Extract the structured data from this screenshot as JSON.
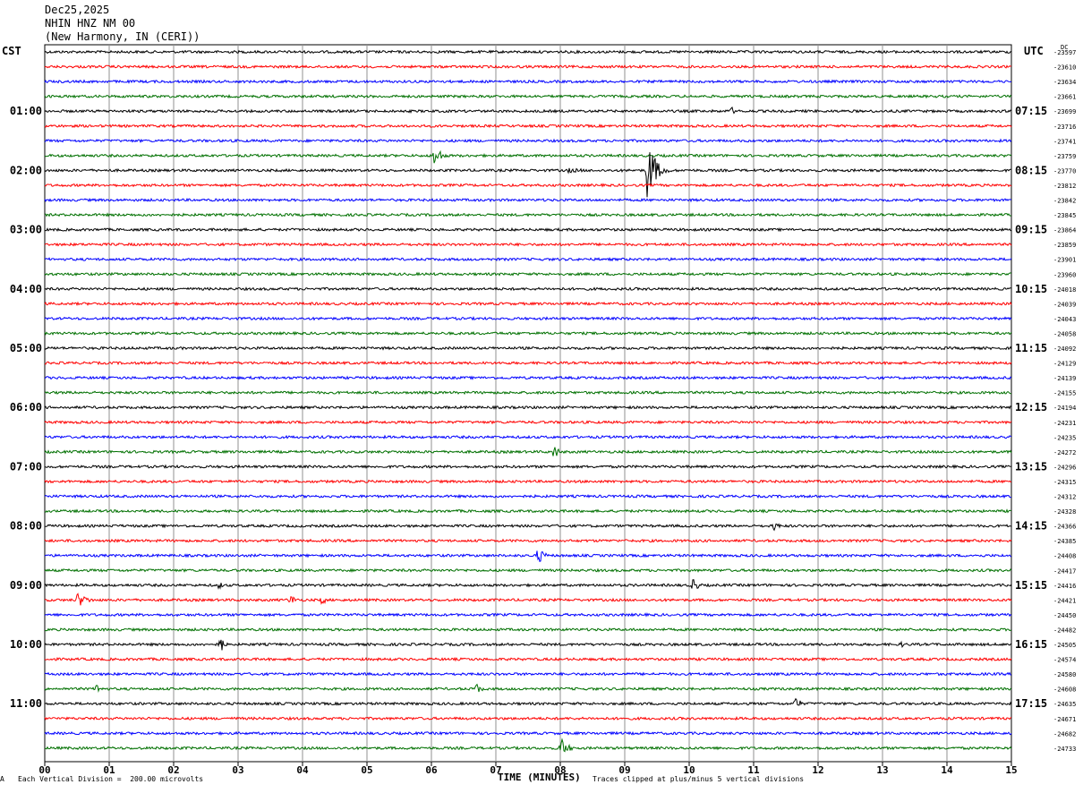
{
  "header": {
    "date": "Dec25,2025",
    "station": "NHIN HNZ NM 00",
    "location": "(New Harmony, IN (CERI))"
  },
  "left_zone_label": "CST",
  "right_zone_label": "UTC",
  "right_extra_label": "DC",
  "footer": {
    "scale_note": "Each Vertical Division =  200.00 microvolts",
    "clip_note": "Traces clipped at plus/minus 5 vertical divisions",
    "corner_mark": "A"
  },
  "chart_data": {
    "type": "line",
    "title": "",
    "xlabel": "TIME (MINUTES)",
    "xlim": [
      0,
      15
    ],
    "x_ticks": [
      "00",
      "01",
      "02",
      "03",
      "04",
      "05",
      "06",
      "07",
      "08",
      "09",
      "10",
      "11",
      "12",
      "13",
      "14",
      "15"
    ],
    "trace_interval_minutes": 15,
    "trace_colors": [
      "#000000",
      "#ff0000",
      "#0000ff",
      "#007000"
    ],
    "left_time_labels": [
      {
        "trace": 4,
        "text": "01:00"
      },
      {
        "trace": 8,
        "text": "02:00"
      },
      {
        "trace": 12,
        "text": "03:00"
      },
      {
        "trace": 16,
        "text": "04:00"
      },
      {
        "trace": 20,
        "text": "05:00"
      },
      {
        "trace": 24,
        "text": "06:00"
      },
      {
        "trace": 28,
        "text": "07:00"
      },
      {
        "trace": 32,
        "text": "08:00"
      },
      {
        "trace": 36,
        "text": "09:00"
      },
      {
        "trace": 40,
        "text": "10:00"
      },
      {
        "trace": 44,
        "text": "11:00"
      }
    ],
    "right_time_labels": [
      {
        "trace": 4,
        "text": "07:15"
      },
      {
        "trace": 8,
        "text": "08:15"
      },
      {
        "trace": 12,
        "text": "09:15"
      },
      {
        "trace": 16,
        "text": "10:15"
      },
      {
        "trace": 20,
        "text": "11:15"
      },
      {
        "trace": 24,
        "text": "12:15"
      },
      {
        "trace": 28,
        "text": "13:15"
      },
      {
        "trace": 32,
        "text": "14:15"
      },
      {
        "trace": 36,
        "text": "15:15"
      },
      {
        "trace": 40,
        "text": "16:15"
      },
      {
        "trace": 44,
        "text": "17:15"
      }
    ],
    "dc_offsets": [
      "-23597",
      "-23610",
      "-23634",
      "-23661",
      "-23699",
      "-23716",
      "-23741",
      "-23759",
      "-23770",
      "-23812",
      "-23842",
      "-23845",
      "-23864",
      "-23859",
      "-23901",
      "-23960",
      "-24018",
      "-24039",
      "-24043",
      "-24058",
      "-24092",
      "-24129",
      "-24139",
      "-24155",
      "-24194",
      "-24231",
      "-24235",
      "-24272",
      "-24296",
      "-24315",
      "-24312",
      "-24328",
      "-24366",
      "-24385",
      "-24408",
      "-24417",
      "-24416",
      "-24421",
      "-24450",
      "-24482",
      "-24505",
      "-24574",
      "-24580",
      "-24608",
      "-24635",
      "-24671",
      "-24682",
      "-24733"
    ],
    "events": [
      {
        "trace": 4,
        "minute": 10.65,
        "amp": 7,
        "dur": 0.12
      },
      {
        "trace": 7,
        "minute": 6.05,
        "amp": 16,
        "dur": 0.25
      },
      {
        "trace": 8,
        "minute": 9.35,
        "amp": 40,
        "dur": 0.35
      },
      {
        "trace": 8,
        "minute": 8.1,
        "amp": 3,
        "dur": 1.2
      },
      {
        "trace": 27,
        "minute": 7.9,
        "amp": 10,
        "dur": 0.2
      },
      {
        "trace": 32,
        "minute": 11.3,
        "amp": 6,
        "dur": 0.3
      },
      {
        "trace": 34,
        "minute": 7.65,
        "amp": 10,
        "dur": 0.3
      },
      {
        "trace": 36,
        "minute": 10.05,
        "amp": 12,
        "dur": 0.2
      },
      {
        "trace": 36,
        "minute": 2.7,
        "amp": 5,
        "dur": 0.2
      },
      {
        "trace": 37,
        "minute": 0.5,
        "amp": 9,
        "dur": 0.45
      },
      {
        "trace": 37,
        "minute": 3.8,
        "amp": 7,
        "dur": 0.3
      },
      {
        "trace": 37,
        "minute": 4.3,
        "amp": 8,
        "dur": 0.15
      },
      {
        "trace": 40,
        "minute": 2.72,
        "amp": 18,
        "dur": 0.12
      },
      {
        "trace": 40,
        "minute": 13.3,
        "amp": 4,
        "dur": 0.1
      },
      {
        "trace": 43,
        "minute": 0.8,
        "amp": 7,
        "dur": 0.25
      },
      {
        "trace": 43,
        "minute": 6.7,
        "amp": 8,
        "dur": 0.2
      },
      {
        "trace": 44,
        "minute": 11.65,
        "amp": 14,
        "dur": 0.15
      },
      {
        "trace": 47,
        "minute": 8.0,
        "amp": 14,
        "dur": 0.3
      }
    ]
  }
}
